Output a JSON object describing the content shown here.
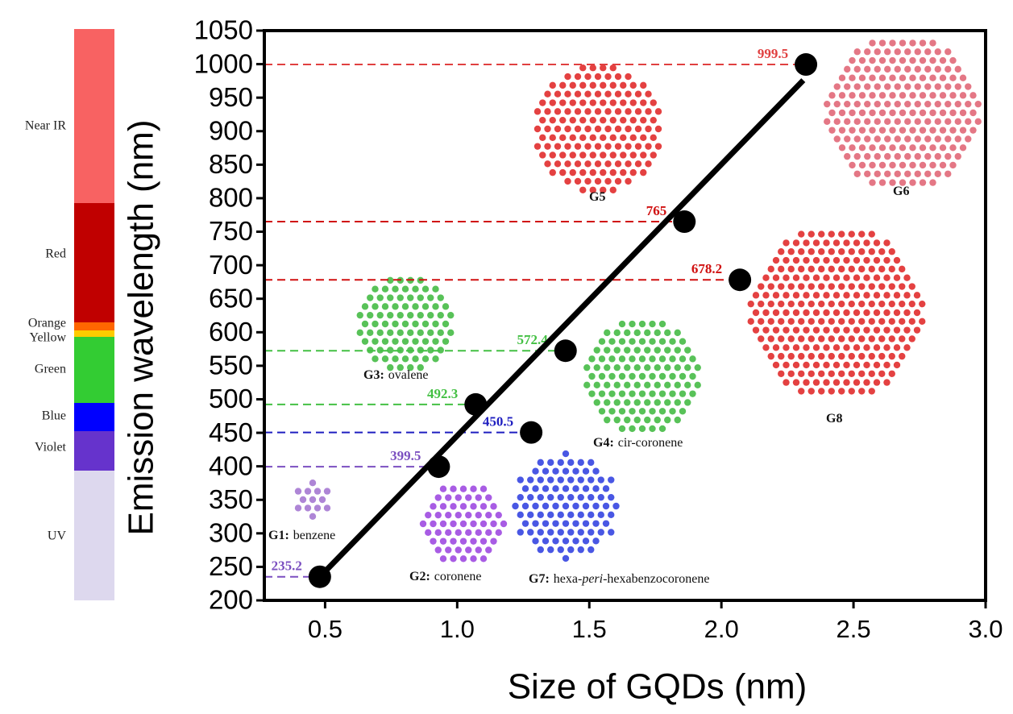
{
  "chart_data": {
    "type": "scatter",
    "xlabel": "Size of GQDs (nm)",
    "ylabel": "Emission wavelength (nm)",
    "xlim": [
      0.27,
      3.0
    ],
    "ylim": [
      200,
      1050
    ],
    "xticks": [
      {
        "value": 0.5,
        "label": "0.5"
      },
      {
        "value": 1.0,
        "label": "1.0"
      },
      {
        "value": 1.5,
        "label": "1.5"
      },
      {
        "value": 2.0,
        "label": "2.0"
      },
      {
        "value": 2.5,
        "label": "2.5"
      },
      {
        "value": 3.0,
        "label": "3.0"
      }
    ],
    "yticks": [
      200,
      250,
      300,
      350,
      400,
      450,
      500,
      550,
      600,
      650,
      700,
      750,
      800,
      850,
      900,
      950,
      1000,
      1050
    ],
    "points": {
      "color": "#000000",
      "x": [
        0.48,
        0.93,
        1.07,
        1.28,
        1.41,
        1.86,
        2.07,
        2.32
      ],
      "values": [
        235.2,
        399.5,
        492.3,
        450.5,
        572.4,
        765,
        678.2,
        999.5
      ],
      "label_colors": [
        "#7b4fc0",
        "#7b4fc0",
        "#44c044",
        "#1f1fc0",
        "#44c044",
        "#d01010",
        "#d01010",
        "#e04040"
      ]
    },
    "fit": {
      "color": "#000000",
      "x": [
        0.47,
        2.31
      ],
      "values": [
        231,
        976
      ]
    },
    "spectrum": [
      {
        "label": "Near IR",
        "color": "#f86262"
      },
      {
        "label": "Red",
        "color": "#c00000"
      },
      {
        "label": "Orange",
        "color": "#ff6600"
      },
      {
        "label": "Yellow",
        "color": "#ffcc00"
      },
      {
        "label": "Green",
        "color": "#33cc33"
      },
      {
        "label": "Blue",
        "color": "#0000ff"
      },
      {
        "label": "Violet",
        "color": "#6633cc"
      },
      {
        "label": "UV",
        "color": "#ddd8ee"
      }
    ],
    "molecules": [
      {
        "id": "G1:",
        "name": [
          "benzene"
        ],
        "color": "#a070d0"
      },
      {
        "id": "G2:",
        "name": [
          "coronene"
        ],
        "color": "#9a40e0"
      },
      {
        "id": "G3:",
        "name": [
          "ovalene"
        ],
        "color": "#3cb83c"
      },
      {
        "id": "G4:",
        "name": [
          "cir-coronene"
        ],
        "color": "#3cb83c"
      },
      {
        "id": "G5",
        "name": [],
        "color": "#e02020"
      },
      {
        "id": "G6",
        "name": [],
        "color": "#e06070"
      },
      {
        "id": "G7:",
        "name": [
          "hexa-",
          "peri",
          "-hexabenzocoronene"
        ],
        "color": "#2a3ae0"
      },
      {
        "id": "G8",
        "name": [],
        "color": "#e02020"
      }
    ]
  }
}
